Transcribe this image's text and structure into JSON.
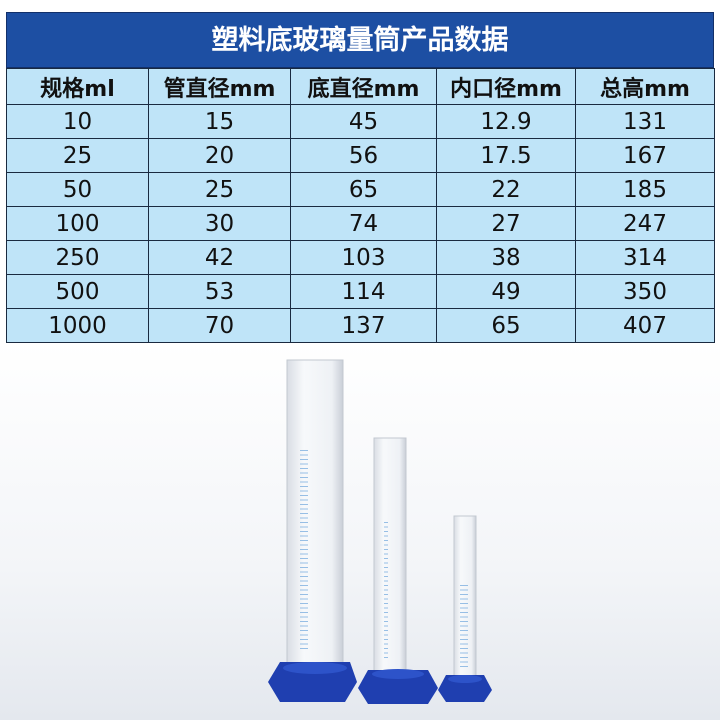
{
  "table": {
    "title": "塑料底玻璃量筒产品数据",
    "columns": [
      "规格ml",
      "管直径mm",
      "底直径mm",
      "内口径mm",
      "总高mm"
    ],
    "rows": [
      [
        "10",
        "15",
        "45",
        "12.9",
        "131"
      ],
      [
        "25",
        "20",
        "56",
        "17.5",
        "167"
      ],
      [
        "50",
        "25",
        "65",
        "22",
        "185"
      ],
      [
        "100",
        "30",
        "74",
        "27",
        "247"
      ],
      [
        "250",
        "42",
        "103",
        "38",
        "314"
      ],
      [
        "500",
        "53",
        "114",
        "49",
        "350"
      ],
      [
        "1000",
        "70",
        "137",
        "65",
        "407"
      ]
    ]
  }
}
